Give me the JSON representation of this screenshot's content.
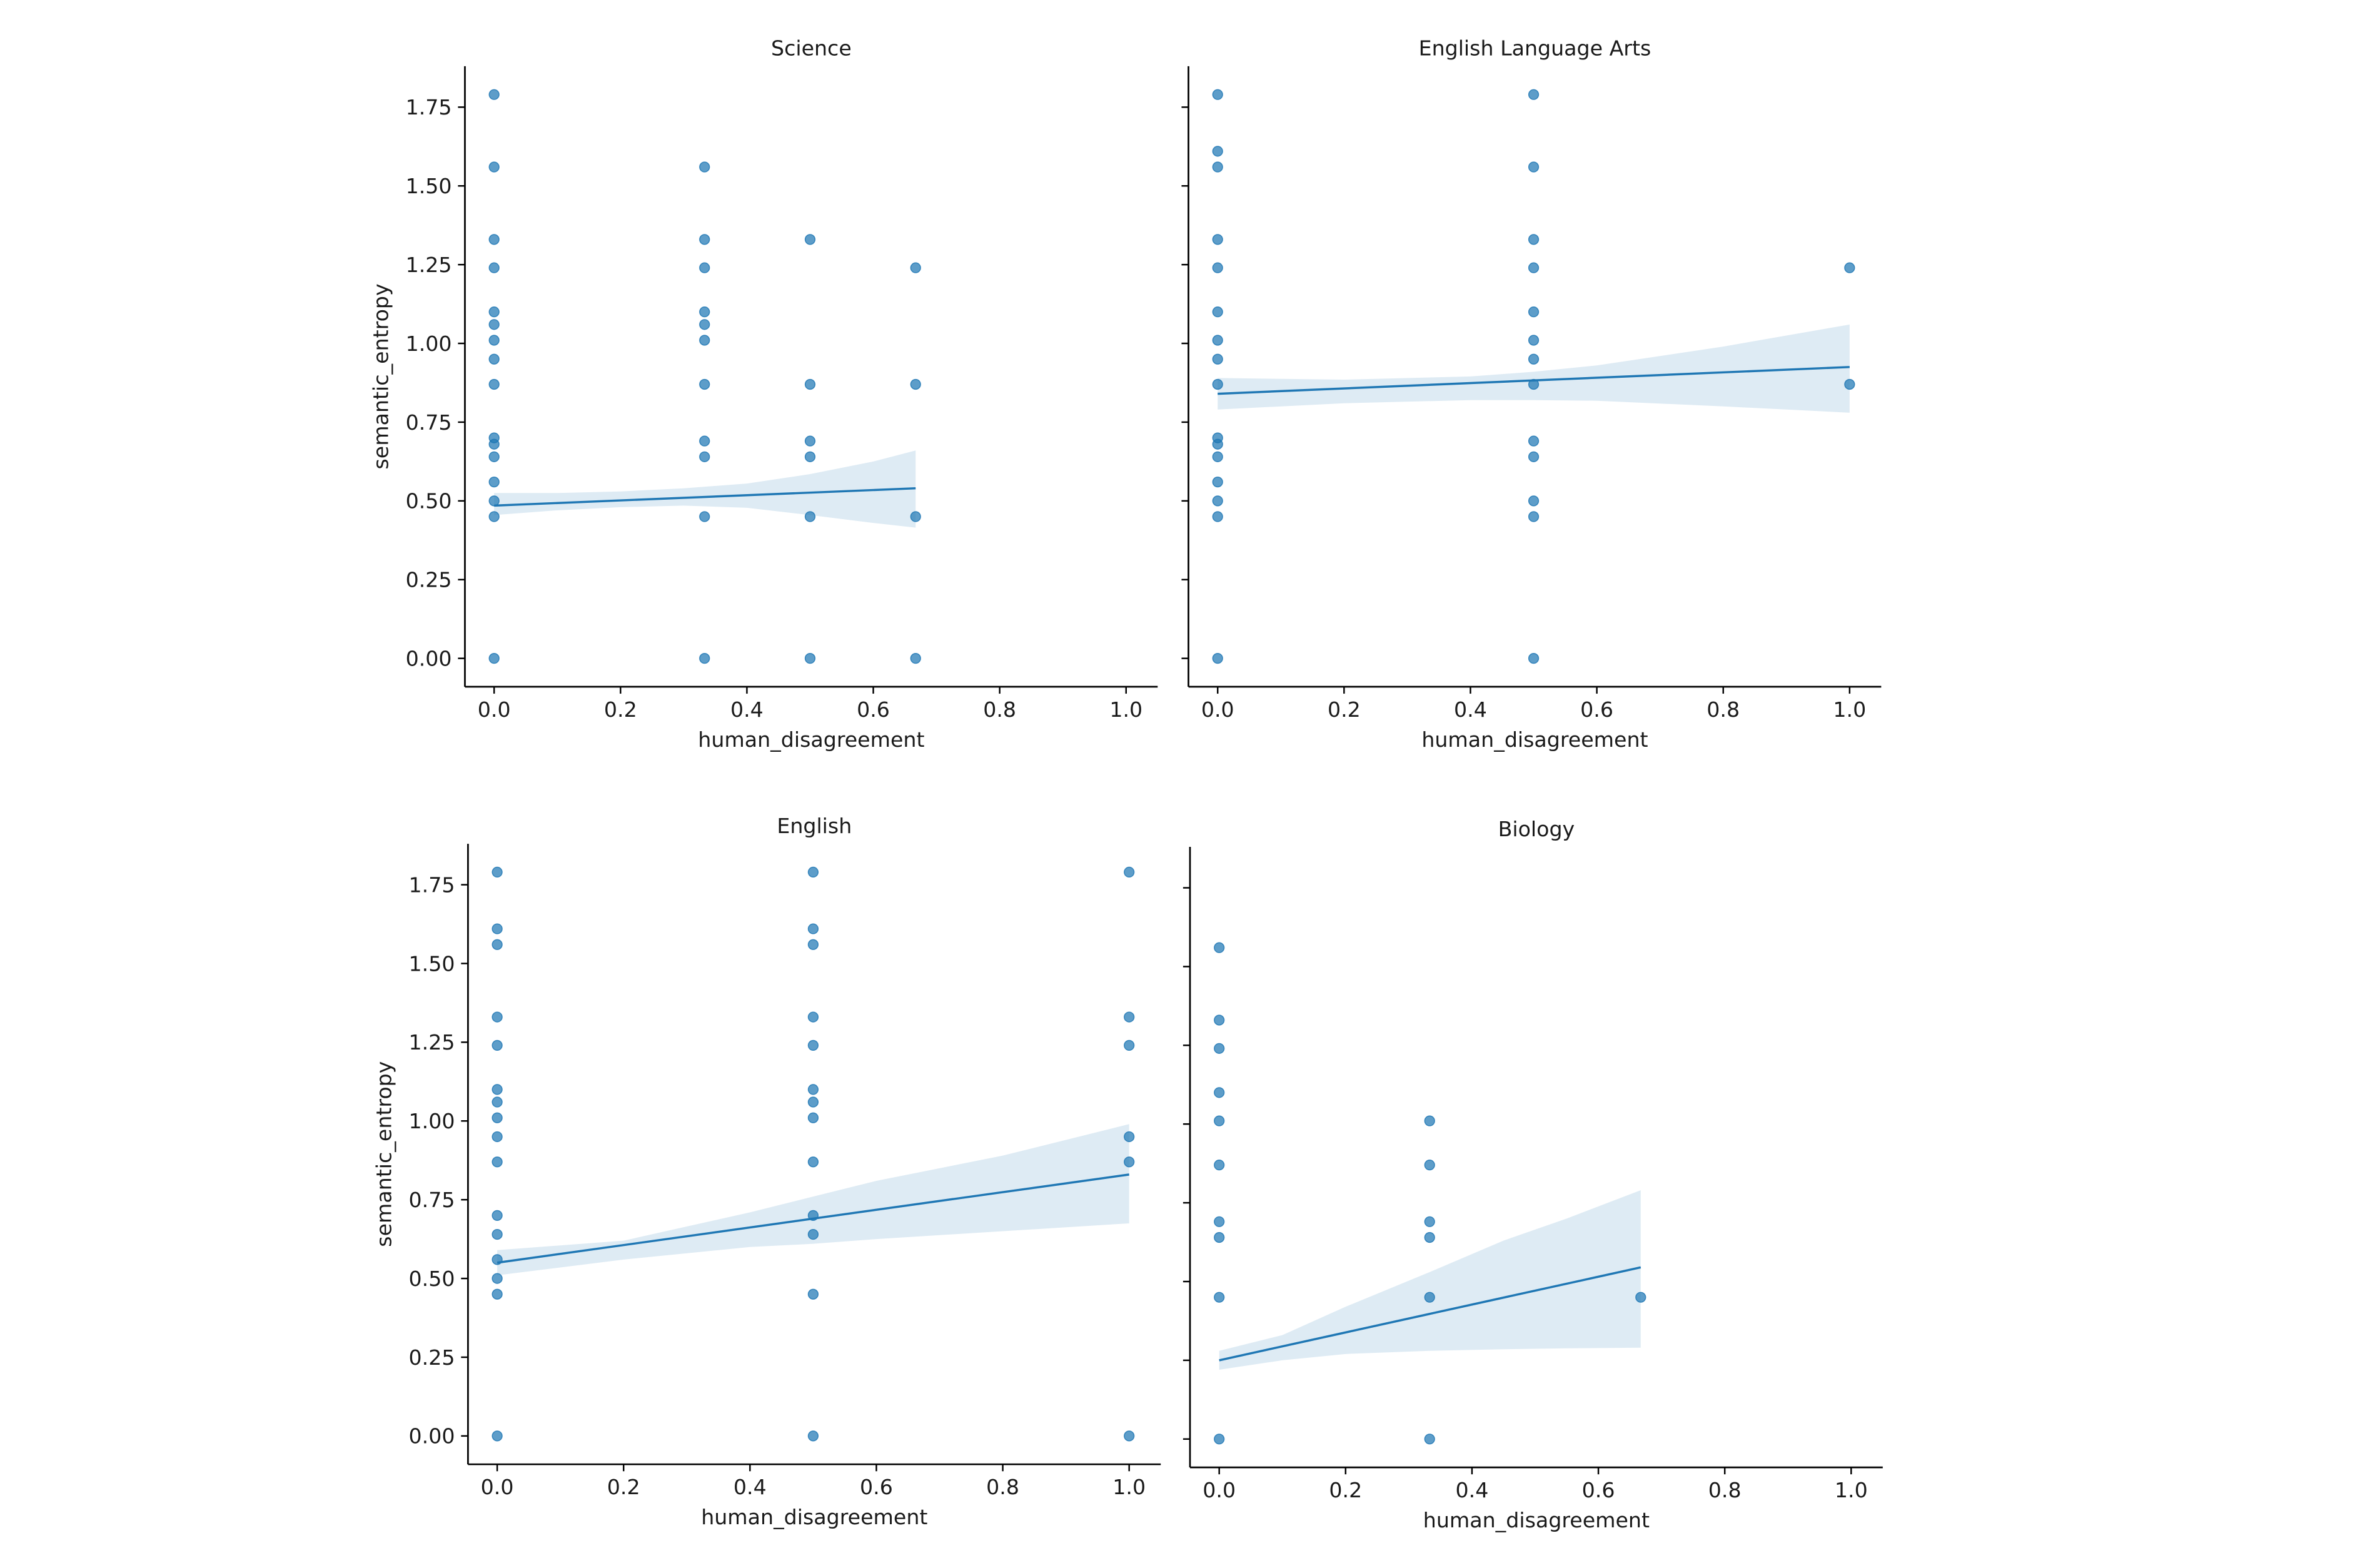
{
  "chart_data": [
    {
      "type": "scatter",
      "title": "Science",
      "xlabel": "human_disagreement",
      "ylabel": "semantic_entropy",
      "xlim": [
        -0.045,
        1.05
      ],
      "ylim": [
        -0.09,
        1.88
      ],
      "xticks": [
        "0.0",
        "0.2",
        "0.4",
        "0.6",
        "0.8",
        "1.0"
      ],
      "yticks": [
        "0.00",
        "0.25",
        "0.50",
        "0.75",
        "1.00",
        "1.25",
        "1.50",
        "1.75"
      ],
      "show_ylabel": true,
      "points": [
        [
          0,
          1.79
        ],
        [
          0,
          1.56
        ],
        [
          0,
          1.33
        ],
        [
          0,
          1.24
        ],
        [
          0,
          1.1
        ],
        [
          0,
          1.06
        ],
        [
          0,
          1.01
        ],
        [
          0,
          0.95
        ],
        [
          0,
          0.87
        ],
        [
          0,
          0.7
        ],
        [
          0,
          0.68
        ],
        [
          0,
          0.64
        ],
        [
          0,
          0.56
        ],
        [
          0,
          0.5
        ],
        [
          0,
          0.45
        ],
        [
          0,
          0.0
        ],
        [
          0.333,
          1.56
        ],
        [
          0.333,
          1.33
        ],
        [
          0.333,
          1.24
        ],
        [
          0.333,
          1.1
        ],
        [
          0.333,
          1.06
        ],
        [
          0.333,
          1.01
        ],
        [
          0.333,
          0.87
        ],
        [
          0.333,
          0.69
        ],
        [
          0.333,
          0.64
        ],
        [
          0.333,
          0.45
        ],
        [
          0.333,
          0.0
        ],
        [
          0.5,
          1.33
        ],
        [
          0.5,
          0.87
        ],
        [
          0.5,
          0.69
        ],
        [
          0.5,
          0.64
        ],
        [
          0.5,
          0.45
        ],
        [
          0.5,
          0.0
        ],
        [
          0.667,
          1.24
        ],
        [
          0.667,
          0.87
        ],
        [
          0.667,
          0.45
        ],
        [
          0.667,
          0.0
        ]
      ],
      "regression": {
        "x": [
          0,
          0.667
        ],
        "y": [
          0.485,
          0.54
        ]
      },
      "ci_band": {
        "x": [
          0,
          0.1,
          0.2,
          0.3,
          0.4,
          0.5,
          0.6,
          0.667
        ],
        "lower": [
          0.455,
          0.47,
          0.48,
          0.485,
          0.478,
          0.455,
          0.43,
          0.415
        ],
        "upper": [
          0.525,
          0.525,
          0.53,
          0.54,
          0.555,
          0.585,
          0.625,
          0.66
        ]
      }
    },
    {
      "type": "scatter",
      "title": "English Language Arts",
      "xlabel": "human_disagreement",
      "ylabel": "",
      "xlim": [
        -0.045,
        1.05
      ],
      "ylim": [
        -0.09,
        1.88
      ],
      "xticks": [
        "0.0",
        "0.2",
        "0.4",
        "0.6",
        "0.8",
        "1.0"
      ],
      "yticks": [
        "0.00",
        "0.25",
        "0.50",
        "0.75",
        "1.00",
        "1.25",
        "1.50",
        "1.75"
      ],
      "show_ylabel": false,
      "points": [
        [
          0,
          1.79
        ],
        [
          0,
          1.61
        ],
        [
          0,
          1.56
        ],
        [
          0,
          1.33
        ],
        [
          0,
          1.24
        ],
        [
          0,
          1.1
        ],
        [
          0,
          1.01
        ],
        [
          0,
          0.95
        ],
        [
          0,
          0.87
        ],
        [
          0,
          0.7
        ],
        [
          0,
          0.68
        ],
        [
          0,
          0.64
        ],
        [
          0,
          0.56
        ],
        [
          0,
          0.5
        ],
        [
          0,
          0.45
        ],
        [
          0,
          0.0
        ],
        [
          0.5,
          1.79
        ],
        [
          0.5,
          1.56
        ],
        [
          0.5,
          1.33
        ],
        [
          0.5,
          1.24
        ],
        [
          0.5,
          1.1
        ],
        [
          0.5,
          1.01
        ],
        [
          0.5,
          0.95
        ],
        [
          0.5,
          0.87
        ],
        [
          0.5,
          0.69
        ],
        [
          0.5,
          0.64
        ],
        [
          0.5,
          0.5
        ],
        [
          0.5,
          0.45
        ],
        [
          0.5,
          0.0
        ],
        [
          1.0,
          1.24
        ],
        [
          1.0,
          0.87
        ]
      ],
      "regression": {
        "x": [
          0,
          1.0
        ],
        "y": [
          0.84,
          0.925
        ]
      },
      "ci_band": {
        "x": [
          0,
          0.2,
          0.4,
          0.5,
          0.6,
          0.8,
          1.0
        ],
        "lower": [
          0.79,
          0.81,
          0.82,
          0.82,
          0.818,
          0.8,
          0.78
        ],
        "upper": [
          0.89,
          0.885,
          0.895,
          0.91,
          0.93,
          0.99,
          1.06
        ]
      }
    },
    {
      "type": "scatter",
      "title": "English",
      "xlabel": "human_disagreement",
      "ylabel": "semantic_entropy",
      "xlim": [
        -0.045,
        1.05
      ],
      "ylim": [
        -0.09,
        1.88
      ],
      "xticks": [
        "0.0",
        "0.2",
        "0.4",
        "0.6",
        "0.8",
        "1.0"
      ],
      "yticks": [
        "0.00",
        "0.25",
        "0.50",
        "0.75",
        "1.00",
        "1.25",
        "1.50",
        "1.75"
      ],
      "show_ylabel": true,
      "points": [
        [
          0,
          1.79
        ],
        [
          0,
          1.61
        ],
        [
          0,
          1.56
        ],
        [
          0,
          1.33
        ],
        [
          0,
          1.24
        ],
        [
          0,
          1.1
        ],
        [
          0,
          1.06
        ],
        [
          0,
          1.01
        ],
        [
          0,
          0.95
        ],
        [
          0,
          0.87
        ],
        [
          0,
          0.7
        ],
        [
          0,
          0.64
        ],
        [
          0,
          0.56
        ],
        [
          0,
          0.5
        ],
        [
          0,
          0.45
        ],
        [
          0,
          0.0
        ],
        [
          0.5,
          1.79
        ],
        [
          0.5,
          1.61
        ],
        [
          0.5,
          1.56
        ],
        [
          0.5,
          1.33
        ],
        [
          0.5,
          1.24
        ],
        [
          0.5,
          1.1
        ],
        [
          0.5,
          1.06
        ],
        [
          0.5,
          1.01
        ],
        [
          0.5,
          0.87
        ],
        [
          0.5,
          0.7
        ],
        [
          0.5,
          0.64
        ],
        [
          0.5,
          0.45
        ],
        [
          0.5,
          0.0
        ],
        [
          1.0,
          1.79
        ],
        [
          1.0,
          1.33
        ],
        [
          1.0,
          1.24
        ],
        [
          1.0,
          0.95
        ],
        [
          1.0,
          0.87
        ],
        [
          1.0,
          0.0
        ]
      ],
      "regression": {
        "x": [
          0,
          1.0
        ],
        "y": [
          0.55,
          0.83
        ]
      },
      "ci_band": {
        "x": [
          0,
          0.2,
          0.4,
          0.5,
          0.6,
          0.8,
          1.0
        ],
        "lower": [
          0.51,
          0.56,
          0.6,
          0.61,
          0.625,
          0.65,
          0.675
        ],
        "upper": [
          0.59,
          0.62,
          0.71,
          0.76,
          0.81,
          0.89,
          0.99
        ]
      }
    },
    {
      "type": "scatter",
      "title": "Biology",
      "xlabel": "human_disagreement",
      "ylabel": "",
      "xlim": [
        -0.045,
        1.05
      ],
      "ylim": [
        -0.09,
        1.88
      ],
      "xticks": [
        "0.0",
        "0.2",
        "0.4",
        "0.6",
        "0.8",
        "1.0"
      ],
      "yticks": [
        "0.00",
        "0.25",
        "0.50",
        "0.75",
        "1.00",
        "1.25",
        "1.50",
        "1.75"
      ],
      "show_ylabel": false,
      "points": [
        [
          0,
          1.56
        ],
        [
          0,
          1.33
        ],
        [
          0,
          1.24
        ],
        [
          0,
          1.1
        ],
        [
          0,
          1.01
        ],
        [
          0,
          0.87
        ],
        [
          0,
          0.69
        ],
        [
          0,
          0.64
        ],
        [
          0,
          0.45
        ],
        [
          0,
          0.0
        ],
        [
          0.333,
          1.01
        ],
        [
          0.333,
          0.87
        ],
        [
          0.333,
          0.69
        ],
        [
          0.333,
          0.64
        ],
        [
          0.333,
          0.45
        ],
        [
          0.333,
          0.0
        ],
        [
          0.667,
          0.45
        ]
      ],
      "regression": {
        "x": [
          0,
          0.667
        ],
        "y": [
          0.25,
          0.545
        ]
      },
      "ci_band": {
        "x": [
          0,
          0.1,
          0.2,
          0.333,
          0.45,
          0.55,
          0.667
        ],
        "lower": [
          0.22,
          0.25,
          0.27,
          0.28,
          0.285,
          0.288,
          0.29
        ],
        "upper": [
          0.28,
          0.33,
          0.42,
          0.53,
          0.63,
          0.7,
          0.79
        ]
      }
    }
  ]
}
